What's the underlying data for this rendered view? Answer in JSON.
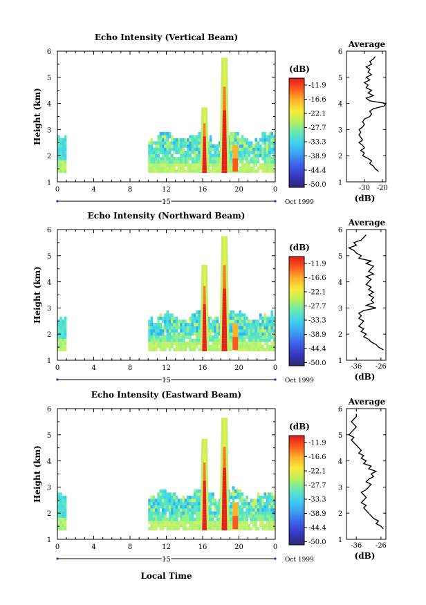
{
  "chart_data": [
    {
      "type": "heatmap",
      "title": "Echo Intensity (Vertical Beam)",
      "ylabel": "Height (km)",
      "xlabel": "",
      "x_ticks": [
        "0",
        "4",
        "8",
        "12",
        "16",
        "20",
        "0"
      ],
      "xlim": [
        0,
        24
      ],
      "y_ticks": [
        "1",
        "2",
        "3",
        "4",
        "5",
        "6"
      ],
      "ylim": [
        1,
        6
      ],
      "date_day": "15",
      "date_month_year": "Oct 1999",
      "colorbar": {
        "label": "(dB)",
        "ticks": [
          "-11.9",
          "-16.6",
          "-22.1",
          "-27.7",
          "-33.3",
          "-38.9",
          "-44.4",
          "-50.0"
        ]
      },
      "profile": {
        "title": "Average",
        "xlabel": "(dB)",
        "x_ticks": [
          "-30",
          "-20"
        ],
        "xlim": [
          -40,
          -18
        ],
        "y_ticks": [
          "1",
          "2",
          "3",
          "4",
          "5",
          "6"
        ],
        "heights": [
          1.4,
          1.5,
          1.6,
          1.7,
          1.8,
          1.9,
          2.0,
          2.1,
          2.2,
          2.3,
          2.4,
          2.5,
          2.6,
          2.7,
          2.8,
          2.9,
          3.0,
          3.1,
          3.2,
          3.3,
          3.4,
          3.5,
          3.6,
          3.7,
          3.8,
          3.9,
          4.0,
          4.1,
          4.2,
          4.3,
          4.4,
          4.5,
          4.6,
          4.7,
          4.8,
          4.9,
          5.0,
          5.1,
          5.2,
          5.3,
          5.4,
          5.5,
          5.6,
          5.7,
          5.8
        ],
        "values": [
          -22,
          -24,
          -25,
          -27,
          -26,
          -28,
          -31,
          -30,
          -32,
          -30,
          -31,
          -33,
          -31,
          -32,
          -33,
          -32,
          -33,
          -31,
          -30,
          -31,
          -30,
          -27,
          -26,
          -27,
          -25,
          -19,
          -18,
          -27,
          -29,
          -25,
          -28,
          -26,
          -29,
          -28,
          -30,
          -27,
          -29,
          -26,
          -28,
          -27,
          -29,
          -26,
          -27,
          -25,
          -24
        ]
      }
    },
    {
      "type": "heatmap",
      "title": "Echo Intensity (Northward Beam)",
      "ylabel": "Height (km)",
      "xlabel": "",
      "x_ticks": [
        "0",
        "4",
        "8",
        "12",
        "16",
        "20",
        "0"
      ],
      "xlim": [
        0,
        24
      ],
      "y_ticks": [
        "1",
        "2",
        "3",
        "4",
        "5",
        "6"
      ],
      "ylim": [
        1,
        6
      ],
      "date_day": "15",
      "date_month_year": "Oct 1999",
      "colorbar": {
        "label": "(dB)",
        "ticks": [
          "-11.9",
          "-16.6",
          "-22.1",
          "-27.7",
          "-33.3",
          "-38.9",
          "-44.4",
          "-50.0"
        ]
      },
      "profile": {
        "title": "Average",
        "xlabel": "(dB)",
        "x_ticks": [
          "-36",
          "-26"
        ],
        "xlim": [
          -40,
          -24
        ],
        "y_ticks": [
          "1",
          "2",
          "3",
          "4",
          "5",
          "6"
        ],
        "heights": [
          1.4,
          1.5,
          1.6,
          1.7,
          1.8,
          1.9,
          2.0,
          2.1,
          2.2,
          2.3,
          2.4,
          2.5,
          2.6,
          2.7,
          2.8,
          2.9,
          3.0,
          3.1,
          3.2,
          3.3,
          3.4,
          3.5,
          3.6,
          3.7,
          3.8,
          3.9,
          4.0,
          4.1,
          4.2,
          4.3,
          4.4,
          4.5,
          4.6,
          4.7,
          4.8,
          4.9,
          5.0,
          5.1,
          5.2,
          5.3,
          5.4,
          5.5,
          5.6,
          5.7,
          5.8
        ],
        "values": [
          -25,
          -27,
          -28,
          -30,
          -31,
          -33,
          -32,
          -34,
          -33,
          -35,
          -34,
          -33,
          -35,
          -34,
          -35,
          -33,
          -28,
          -32,
          -29,
          -30,
          -29,
          -31,
          -29,
          -31,
          -30,
          -32,
          -31,
          -30,
          -32,
          -29,
          -31,
          -30,
          -29,
          -32,
          -30,
          -35,
          -34,
          -36,
          -37,
          -39,
          -36,
          -37,
          -34,
          -33,
          -32
        ]
      }
    },
    {
      "type": "heatmap",
      "title": "Echo Intensity (Eastward Beam)",
      "ylabel": "Height (km)",
      "xlabel": "Local Time",
      "x_ticks": [
        "0",
        "4",
        "8",
        "12",
        "16",
        "20",
        "0"
      ],
      "xlim": [
        0,
        24
      ],
      "y_ticks": [
        "1",
        "2",
        "3",
        "4",
        "5",
        "6"
      ],
      "ylim": [
        1,
        6
      ],
      "date_day": "15",
      "date_month_year": "Oct 1999",
      "colorbar": {
        "label": "(dB)",
        "ticks": [
          "-11.9",
          "-16.6",
          "-22.1",
          "-27.7",
          "-33.3",
          "-38.9",
          "-44.4",
          "-50.0"
        ]
      },
      "profile": {
        "title": "Average",
        "xlabel": "(dB)",
        "x_ticks": [
          "-36",
          "-26"
        ],
        "xlim": [
          -40,
          -24
        ],
        "y_ticks": [
          "1",
          "2",
          "3",
          "4",
          "5",
          "6"
        ],
        "heights": [
          1.4,
          1.5,
          1.6,
          1.7,
          1.8,
          1.9,
          2.0,
          2.1,
          2.2,
          2.3,
          2.4,
          2.5,
          2.6,
          2.7,
          2.8,
          2.9,
          3.0,
          3.1,
          3.2,
          3.3,
          3.4,
          3.5,
          3.6,
          3.7,
          3.8,
          3.9,
          4.0,
          4.1,
          4.2,
          4.3,
          4.4,
          4.5,
          4.6,
          4.7,
          4.8,
          4.9,
          5.0,
          5.1,
          5.2,
          5.3,
          5.4,
          5.5,
          5.6,
          5.7,
          5.8
        ],
        "values": [
          -25,
          -26,
          -28,
          -27,
          -29,
          -30,
          -31,
          -32,
          -33,
          -32,
          -34,
          -33,
          -32,
          -33,
          -34,
          -32,
          -31,
          -30,
          -32,
          -31,
          -29,
          -30,
          -28,
          -31,
          -30,
          -33,
          -32,
          -34,
          -33,
          -35,
          -34,
          -35,
          -36,
          -37,
          -38,
          -37,
          -39,
          -38,
          -37,
          -36,
          -37,
          -38,
          -37,
          -36,
          -36
        ]
      }
    }
  ]
}
